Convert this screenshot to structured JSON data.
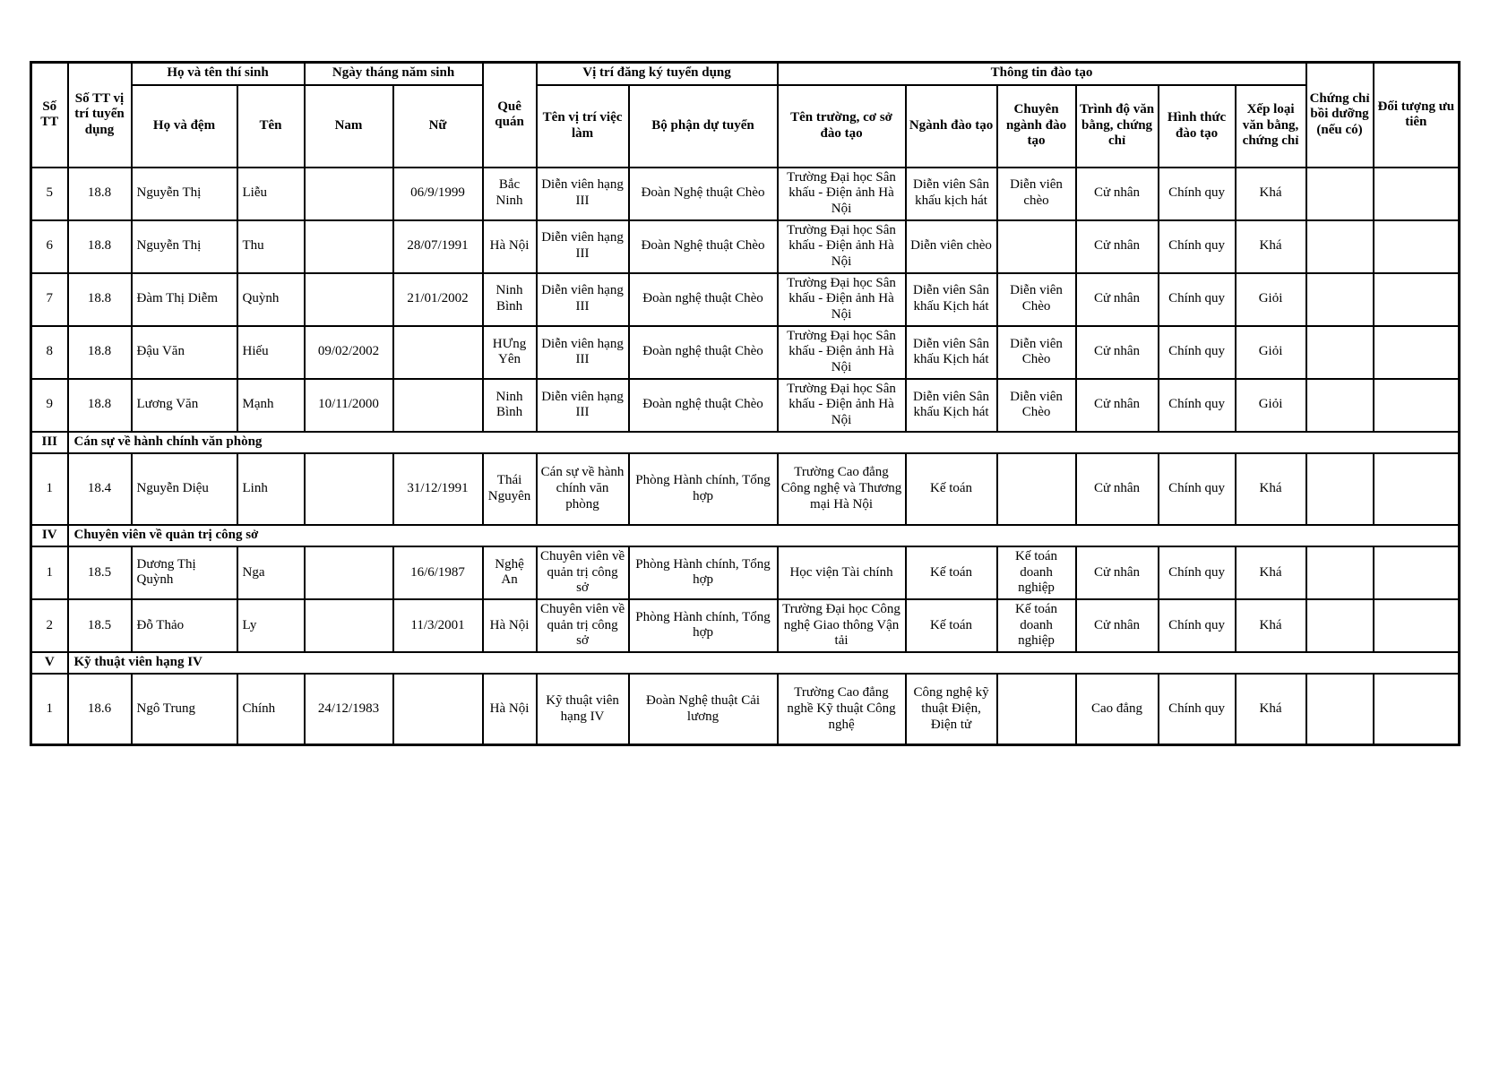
{
  "table": {
    "headers": {
      "so_tt": "Số TT",
      "so_tt_vi_tri": "Số TT vị trí tuyển dụng",
      "ho_ten_group": "Họ và tên thí sinh",
      "ho_va_dem": "Họ và đệm",
      "ten": "Tên",
      "ngay_sinh_group": "Ngày tháng năm sinh",
      "nam": "Nam",
      "nu": "Nữ",
      "que_quan": "Quê quán",
      "vi_tri_group": "Vị trí đăng ký tuyển dụng",
      "ten_vi_tri": "Tên vị trí việc làm",
      "bo_phan": "Bộ phận dự tuyển",
      "thong_tin_group": "Thông tin đào tạo",
      "ten_truong": "Tên trường, cơ sở đào tạo",
      "nganh_dao_tao": "Ngành đào tạo",
      "chuyen_nganh": "Chuyên ngành đào tạo",
      "trinh_do": "Trình độ văn bằng, chứng chỉ",
      "hinh_thuc": "Hình thức đào tạo",
      "xep_loai": "Xếp loại văn bằng, chứng chỉ",
      "chung_chi_boi_duong": "Chứng chỉ bồi dưỡng (nếu có)",
      "doi_tuong_uu_tien": "Đối tượng ưu tiên"
    },
    "rows": [
      {
        "type": "data",
        "cells": [
          "5",
          "18.8",
          "Nguyễn Thị",
          "Liễu",
          "",
          "06/9/1999",
          "Bắc Ninh",
          "Diễn viên hạng III",
          "Đoàn Nghệ thuật Chèo",
          "Trường Đại học Sân khấu - Điện ảnh Hà Nội",
          "Diễn viên Sân khấu kịch hát",
          "Diễn viên chèo",
          "Cử nhân",
          "Chính quy",
          "Khá",
          "",
          ""
        ]
      },
      {
        "type": "data",
        "cells": [
          "6",
          "18.8",
          "Nguyễn Thị",
          "Thu",
          "",
          "28/07/1991",
          "Hà Nội",
          "Diễn viên hạng III",
          "Đoàn Nghệ thuật Chèo",
          "Trường Đại học Sân khấu - Điện ảnh Hà Nội",
          "Diễn viên chèo",
          "",
          "Cử nhân",
          "Chính quy",
          "Khá",
          "",
          ""
        ]
      },
      {
        "type": "data",
        "cells": [
          "7",
          "18.8",
          "Đàm Thị Diễm",
          "Quỳnh",
          "",
          "21/01/2002",
          "Ninh Bình",
          "Diễn viên hạng III",
          "Đoàn nghệ thuật Chèo",
          "Trường Đại học Sân khấu - Điện ảnh Hà Nội",
          "Diễn viên Sân khấu Kịch hát",
          "Diễn viên Chèo",
          "Cử nhân",
          "Chính quy",
          "Giỏi",
          "",
          ""
        ]
      },
      {
        "type": "data",
        "cells": [
          "8",
          "18.8",
          "Đậu Văn",
          "Hiếu",
          "09/02/2002",
          "",
          "HƯng Yên",
          "Diễn viên hạng III",
          "Đoàn nghệ thuật Chèo",
          "Trường Đại học Sân khấu - Điện ảnh Hà Nội",
          "Diễn viên Sân khấu Kịch hát",
          "Diễn viên Chèo",
          "Cử nhân",
          "Chính quy",
          "Giỏi",
          "",
          ""
        ]
      },
      {
        "type": "data",
        "cells": [
          "9",
          "18.8",
          "Lương Văn",
          "Mạnh",
          "10/11/2000",
          "",
          "Ninh Bình",
          "Diễn viên hạng III",
          "Đoàn nghệ thuật Chèo",
          "Trường Đại học Sân khấu - Điện ảnh Hà Nội",
          "Diễn viên Sân khấu Kịch hát",
          "Diễn viên Chèo",
          "Cử nhân",
          "Chính quy",
          "Giỏi",
          "",
          ""
        ]
      },
      {
        "type": "section",
        "numeral": "III",
        "label": "Cán sự về hành chính văn phòng"
      },
      {
        "type": "data",
        "tall": true,
        "cells": [
          "1",
          "18.4",
          "Nguyễn Diệu",
          "Linh",
          "",
          "31/12/1991",
          "Thái Nguyên",
          "Cán sự về hành chính văn phòng",
          "Phòng Hành chính, Tổng hợp",
          "Trường Cao đẳng Công nghệ và Thương mại Hà Nội",
          "Kế toán",
          "",
          "Cử nhân",
          "Chính quy",
          "Khá",
          "",
          ""
        ]
      },
      {
        "type": "section",
        "numeral": "IV",
        "label": "Chuyên viên về quản trị công sở"
      },
      {
        "type": "data",
        "cells": [
          "1",
          "18.5",
          "Dương Thị Quỳnh",
          "Nga",
          "",
          "16/6/1987",
          "Nghệ An",
          "Chuyên viên về quản trị công sở",
          "Phòng Hành chính, Tổng hợp",
          "Học viện Tài chính",
          "Kế toán",
          "Kế toán doanh nghiệp",
          "Cử nhân",
          "Chính quy",
          "Khá",
          "",
          ""
        ]
      },
      {
        "type": "data",
        "cells": [
          "2",
          "18.5",
          "Đỗ Thảo",
          "Ly",
          "",
          "11/3/2001",
          "Hà Nội",
          "Chuyên viên về quản trị công sở",
          "Phòng Hành chính, Tổng hợp",
          "Trường Đại học Công nghệ Giao thông Vận tải",
          "Kế toán",
          "Kế toán doanh nghiệp",
          "Cử nhân",
          "Chính quy",
          "Khá",
          "",
          ""
        ]
      },
      {
        "type": "section",
        "numeral": "V",
        "label": "Kỹ thuật viên hạng IV"
      },
      {
        "type": "data",
        "tall": true,
        "cells": [
          "1",
          "18.6",
          "Ngô Trung",
          "Chính",
          "24/12/1983",
          "",
          "Hà Nội",
          "Kỹ thuật viên hạng IV",
          "Đoàn Nghệ thuật Cải lương",
          "Trường Cao đẳng nghề Kỹ thuật Công nghệ",
          "Công nghệ kỹ thuật Điện, Điện tử",
          "",
          "Cao đẳng",
          "Chính quy",
          "Khá",
          "",
          ""
        ]
      }
    ]
  }
}
